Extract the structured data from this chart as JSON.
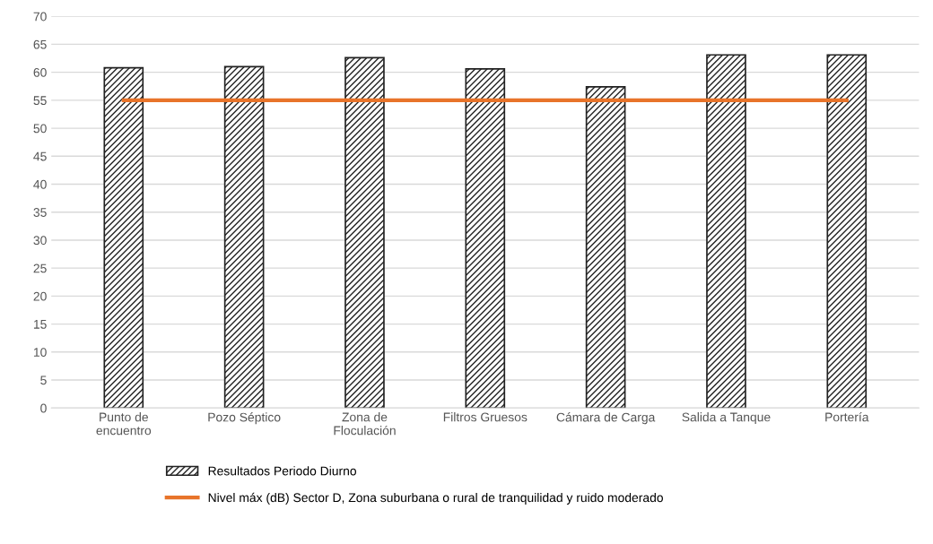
{
  "chart_data": {
    "type": "bar",
    "categories": [
      "Punto de\nencuentro",
      "Pozo Séptico",
      "Zona de\nFloculación",
      "Filtros Gruesos",
      "Cámara de Carga",
      "Salida a Tanque",
      "Portería"
    ],
    "series": [
      {
        "name": "Resultados Periodo Diurno",
        "color": "#222222",
        "values": [
          60.8,
          61.0,
          62.6,
          60.6,
          57.4,
          63.1,
          63.1
        ]
      },
      {
        "name": "Nivel máx (dB) Sector D, Zona suburbana o rural de tranquilidad y ruido moderado",
        "type": "line",
        "color": "#e8742a",
        "values": [
          55,
          55,
          55,
          55,
          55,
          55,
          55
        ]
      }
    ],
    "ylim": [
      0,
      70
    ],
    "yticks": [
      0,
      5,
      10,
      15,
      20,
      25,
      30,
      35,
      40,
      45,
      50,
      55,
      60,
      65,
      70
    ],
    "grid": "y",
    "legend": "bottom",
    "marker": "none",
    "line_style": "solid"
  }
}
